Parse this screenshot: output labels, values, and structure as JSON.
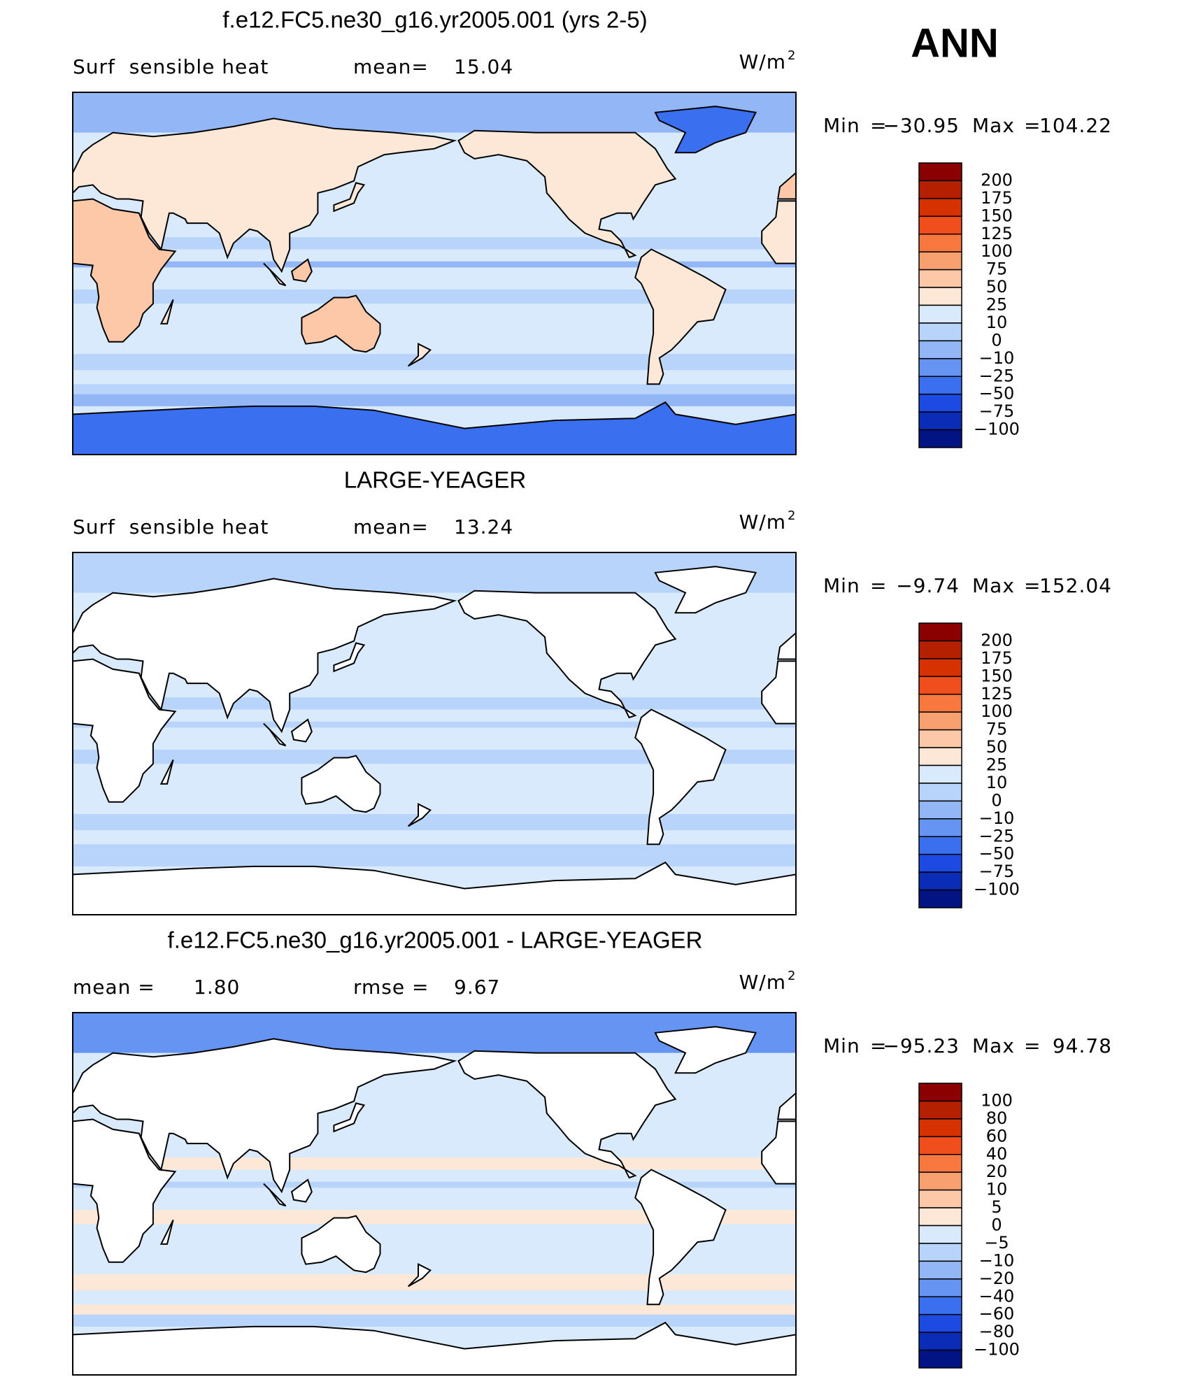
{
  "season": "ANN",
  "equals": "=",
  "colors": [
    "#8b0000",
    "#b52000",
    "#d63100",
    "#f04e1c",
    "#f87840",
    "#f9a070",
    "#fcc8a8",
    "#fde8d8",
    "#d8eafc",
    "#b8d4fa",
    "#93b6f6",
    "#6694f2",
    "#3a6ff0",
    "#1c4ae2",
    "#0a2cb6",
    "#021384"
  ],
  "panels": [
    {
      "title": "f.e12.FC5.ne30_g16.yr2005.001 (yrs 2-5)",
      "left_label": "Surf  sensible heat",
      "stat_label": "mean=",
      "stat_value": "15.04",
      "units": "W/m",
      "units_sup": "2",
      "min_label": "Min",
      "min_value": "−30.95",
      "max_label": "Max",
      "max_value": "104.22",
      "levels": [
        "200",
        "175",
        "150",
        "125",
        "100",
        "75",
        "50",
        "25",
        "10",
        "0",
        "−10",
        "−25",
        "−50",
        "−75",
        "−100"
      ]
    },
    {
      "title": "LARGE-YEAGER",
      "left_label": "Surf  sensible heat",
      "stat_label": "mean=",
      "stat_value": "13.24",
      "units": "W/m",
      "units_sup": "2",
      "min_label": "Min",
      "min_value": "−9.74",
      "max_label": "Max",
      "max_value": "152.04",
      "levels": [
        "200",
        "175",
        "150",
        "125",
        "100",
        "75",
        "50",
        "25",
        "10",
        "0",
        "−10",
        "−25",
        "−50",
        "−75",
        "−100"
      ]
    },
    {
      "title": "f.e12.FC5.ne30_g16.yr2005.001 - LARGE-YEAGER",
      "left_label": "mean =",
      "left_value": "1.80",
      "stat_label": "rmse =",
      "stat_value": "9.67",
      "units": "W/m",
      "units_sup": "2",
      "min_label": "Min",
      "min_value": "−95.23",
      "max_label": "Max",
      "max_value": "94.78",
      "levels": [
        "100",
        "80",
        "60",
        "40",
        "20",
        "10",
        "5",
        "0",
        "−5",
        "−10",
        "−20",
        "−40",
        "−60",
        "−80",
        "−100"
      ]
    }
  ]
}
